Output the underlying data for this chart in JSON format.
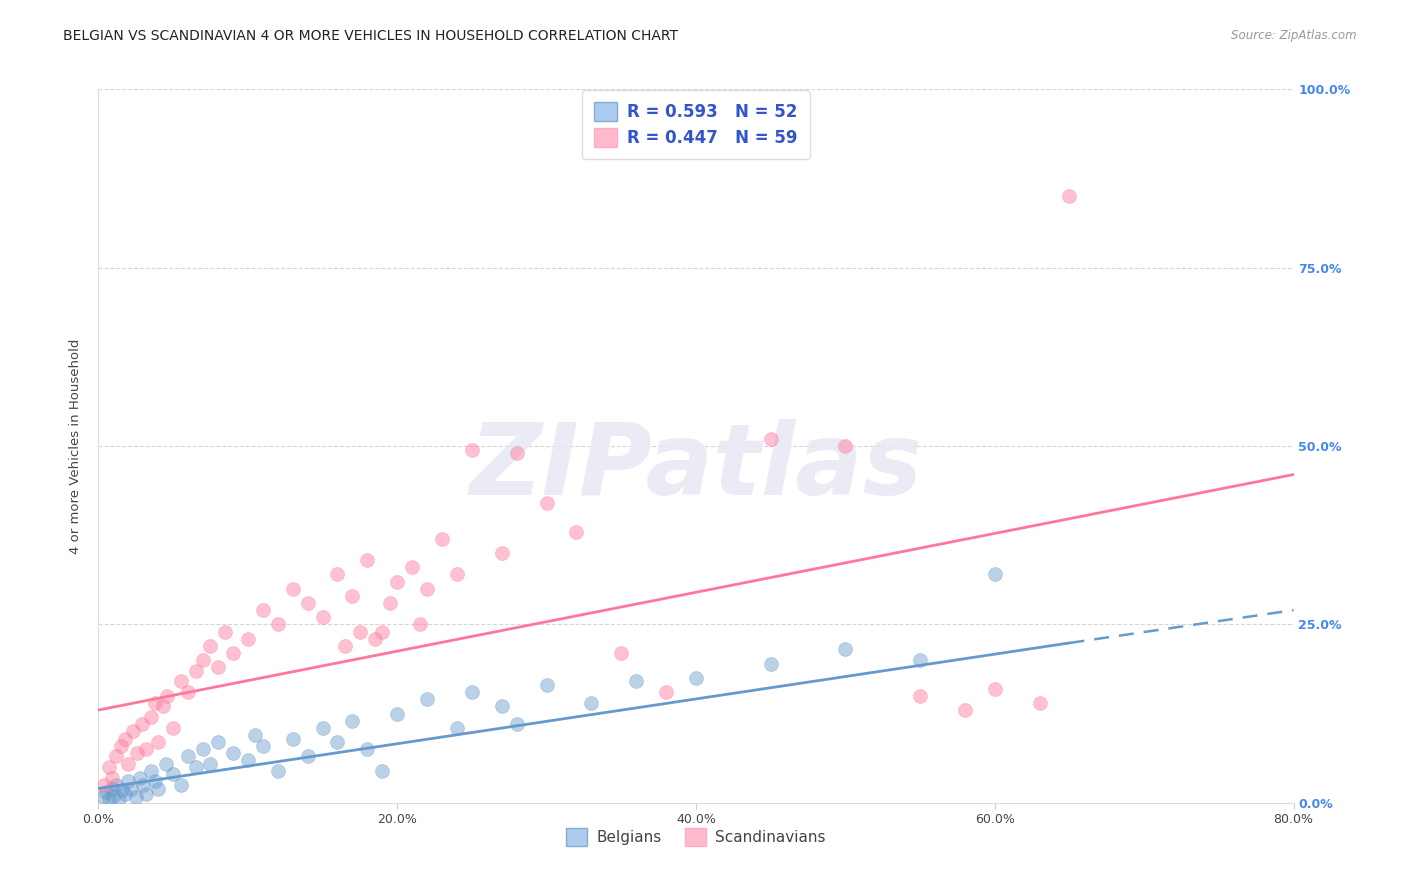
{
  "title": "BELGIAN VS SCANDINAVIAN 4 OR MORE VEHICLES IN HOUSEHOLD CORRELATION CHART",
  "source": "Source: ZipAtlas.com",
  "ylabel": "4 or more Vehicles in Household",
  "xlim": [
    0.0,
    80.0
  ],
  "ylim": [
    0.0,
    100.0
  ],
  "xticks": [
    0,
    20,
    40,
    60,
    80
  ],
  "xticklabels": [
    "0.0%",
    "20.0%",
    "40.0%",
    "60.0%",
    "80.0%"
  ],
  "yticks": [
    0,
    25,
    50,
    75,
    100
  ],
  "yticklabels_right": [
    "0.0%",
    "25.0%",
    "50.0%",
    "75.0%",
    "100.0%"
  ],
  "belgian_r": "0.593",
  "belgian_n": "52",
  "scandinavian_r": "0.447",
  "scandinavian_n": "59",
  "belgian_color": "#6699cc",
  "scandinavian_color": "#ff7799",
  "belgian_patch_face": "#aaccee",
  "scandinavian_patch_face": "#ffbbcc",
  "belgian_trend_x0": 0.0,
  "belgian_trend_y0": 2.0,
  "belgian_trend_x_solid_end": 65.0,
  "belgian_trend_y_solid_end": 22.4,
  "belgian_trend_x1": 80.0,
  "belgian_trend_y1": 27.0,
  "scandinavian_trend_x0": 0.0,
  "scandinavian_trend_y0": 13.0,
  "scandinavian_trend_x1": 80.0,
  "scandinavian_trend_y1": 46.0,
  "watermark_text": "ZIPatlas",
  "watermark_color": "#e8e8f5",
  "background_color": "#ffffff",
  "grid_color": "#cccccc",
  "right_tick_color": "#4488ee",
  "legend_text_color": "#3355cc",
  "belgian_points": [
    [
      0.3,
      0.8
    ],
    [
      0.5,
      1.5
    ],
    [
      0.7,
      0.5
    ],
    [
      0.9,
      2.0
    ],
    [
      1.0,
      1.0
    ],
    [
      1.2,
      2.5
    ],
    [
      1.4,
      0.6
    ],
    [
      1.6,
      1.8
    ],
    [
      1.8,
      1.2
    ],
    [
      2.0,
      3.0
    ],
    [
      2.2,
      2.0
    ],
    [
      2.5,
      0.8
    ],
    [
      2.8,
      3.5
    ],
    [
      3.0,
      2.5
    ],
    [
      3.2,
      1.2
    ],
    [
      3.5,
      4.5
    ],
    [
      3.8,
      3.0
    ],
    [
      4.0,
      2.0
    ],
    [
      4.5,
      5.5
    ],
    [
      5.0,
      4.0
    ],
    [
      5.5,
      2.5
    ],
    [
      6.0,
      6.5
    ],
    [
      6.5,
      5.0
    ],
    [
      7.0,
      7.5
    ],
    [
      7.5,
      5.5
    ],
    [
      8.0,
      8.5
    ],
    [
      9.0,
      7.0
    ],
    [
      10.0,
      6.0
    ],
    [
      10.5,
      9.5
    ],
    [
      11.0,
      8.0
    ],
    [
      12.0,
      4.5
    ],
    [
      13.0,
      9.0
    ],
    [
      14.0,
      6.5
    ],
    [
      15.0,
      10.5
    ],
    [
      16.0,
      8.5
    ],
    [
      17.0,
      11.5
    ],
    [
      18.0,
      7.5
    ],
    [
      19.0,
      4.5
    ],
    [
      20.0,
      12.5
    ],
    [
      22.0,
      14.5
    ],
    [
      24.0,
      10.5
    ],
    [
      25.0,
      15.5
    ],
    [
      27.0,
      13.5
    ],
    [
      28.0,
      11.0
    ],
    [
      30.0,
      16.5
    ],
    [
      33.0,
      14.0
    ],
    [
      36.0,
      17.0
    ],
    [
      40.0,
      17.5
    ],
    [
      45.0,
      19.5
    ],
    [
      50.0,
      21.5
    ],
    [
      55.0,
      20.0
    ],
    [
      60.0,
      32.0
    ]
  ],
  "scandinavian_points": [
    [
      0.4,
      2.5
    ],
    [
      0.7,
      5.0
    ],
    [
      0.9,
      3.5
    ],
    [
      1.2,
      6.5
    ],
    [
      1.5,
      8.0
    ],
    [
      1.8,
      9.0
    ],
    [
      2.0,
      5.5
    ],
    [
      2.3,
      10.0
    ],
    [
      2.6,
      7.0
    ],
    [
      2.9,
      11.0
    ],
    [
      3.2,
      7.5
    ],
    [
      3.5,
      12.0
    ],
    [
      3.8,
      14.0
    ],
    [
      4.0,
      8.5
    ],
    [
      4.3,
      13.5
    ],
    [
      4.6,
      15.0
    ],
    [
      5.0,
      10.5
    ],
    [
      5.5,
      17.0
    ],
    [
      6.0,
      15.5
    ],
    [
      6.5,
      18.5
    ],
    [
      7.0,
      20.0
    ],
    [
      7.5,
      22.0
    ],
    [
      8.0,
      19.0
    ],
    [
      8.5,
      24.0
    ],
    [
      9.0,
      21.0
    ],
    [
      10.0,
      23.0
    ],
    [
      11.0,
      27.0
    ],
    [
      12.0,
      25.0
    ],
    [
      13.0,
      30.0
    ],
    [
      14.0,
      28.0
    ],
    [
      15.0,
      26.0
    ],
    [
      16.0,
      32.0
    ],
    [
      16.5,
      22.0
    ],
    [
      17.0,
      29.0
    ],
    [
      17.5,
      24.0
    ],
    [
      18.0,
      34.0
    ],
    [
      19.0,
      24.0
    ],
    [
      20.0,
      31.0
    ],
    [
      21.0,
      33.0
    ],
    [
      22.0,
      30.0
    ],
    [
      23.0,
      37.0
    ],
    [
      24.0,
      32.0
    ],
    [
      25.0,
      49.5
    ],
    [
      27.0,
      35.0
    ],
    [
      28.0,
      49.0
    ],
    [
      30.0,
      42.0
    ],
    [
      32.0,
      38.0
    ],
    [
      35.0,
      21.0
    ],
    [
      38.0,
      15.5
    ],
    [
      45.0,
      51.0
    ],
    [
      50.0,
      50.0
    ],
    [
      55.0,
      15.0
    ],
    [
      58.0,
      13.0
    ],
    [
      60.0,
      16.0
    ],
    [
      63.0,
      14.0
    ],
    [
      65.0,
      85.0
    ],
    [
      18.5,
      23.0
    ],
    [
      19.5,
      28.0
    ],
    [
      21.5,
      25.0
    ]
  ]
}
